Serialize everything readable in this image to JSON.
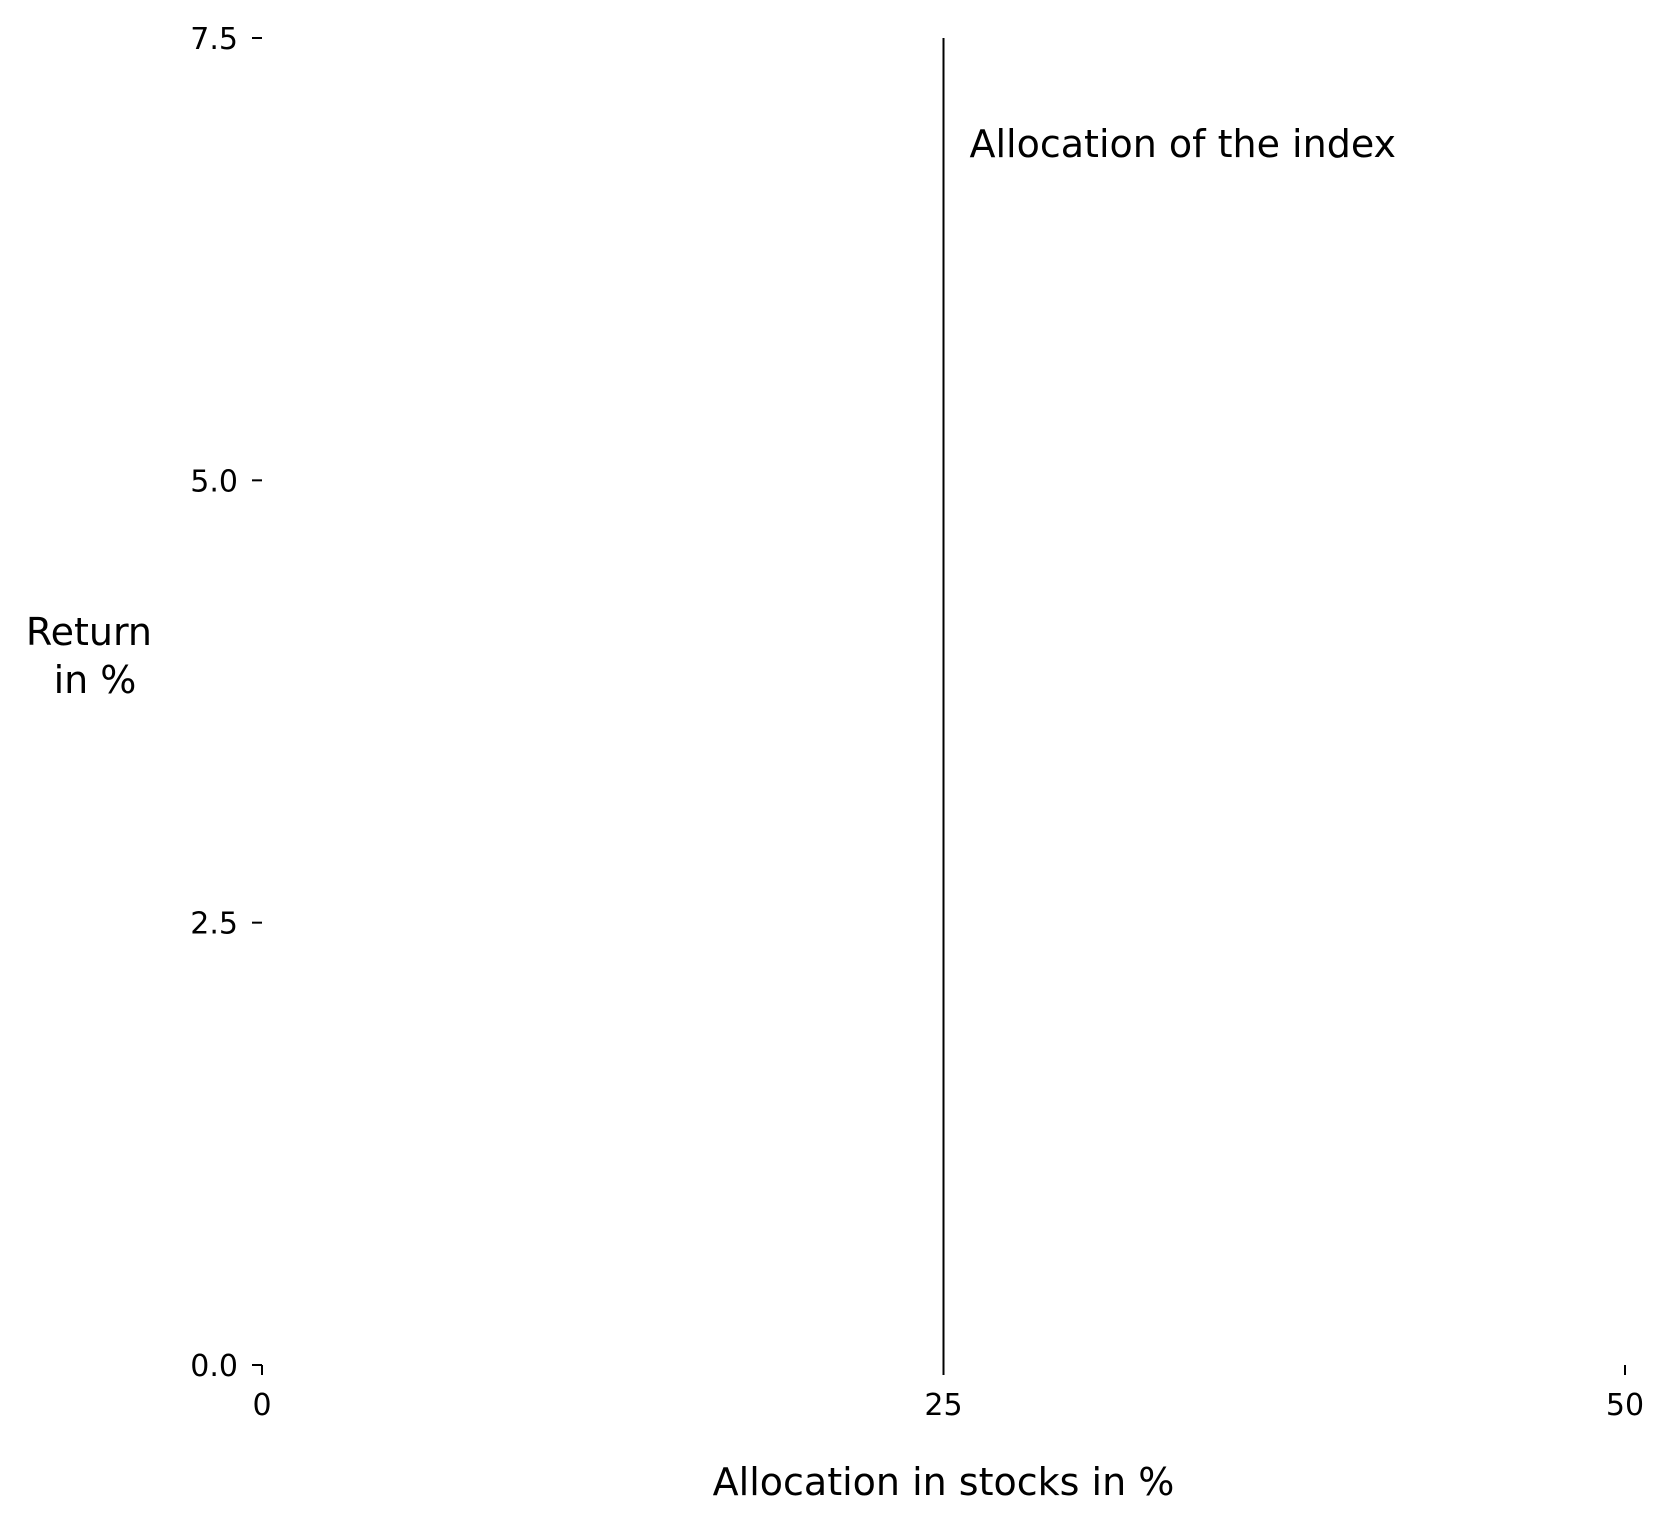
{
  "chart_data": {
    "type": "line",
    "xlabel": "Allocation in stocks in %",
    "ylabel_lines": [
      "Return",
      "in %"
    ],
    "xlim": [
      0,
      50
    ],
    "ylim": [
      0,
      7.5
    ],
    "x_ticks": [
      {
        "value": 0,
        "label": "0"
      },
      {
        "value": 25,
        "label": "25"
      },
      {
        "value": 50,
        "label": "50"
      }
    ],
    "y_ticks": [
      {
        "value": 0,
        "label": "0.0"
      },
      {
        "value": 2.5,
        "label": "2.5"
      },
      {
        "value": 5,
        "label": "5.0"
      },
      {
        "value": 7.5,
        "label": "7.5"
      }
    ],
    "grid": false,
    "series": [],
    "annotations": [
      {
        "type": "vertical-line",
        "x": 25,
        "y_from": 0,
        "y_to": 7.5,
        "text": "Allocation of the index",
        "text_y": 6.9,
        "color": "#000000"
      }
    ]
  }
}
